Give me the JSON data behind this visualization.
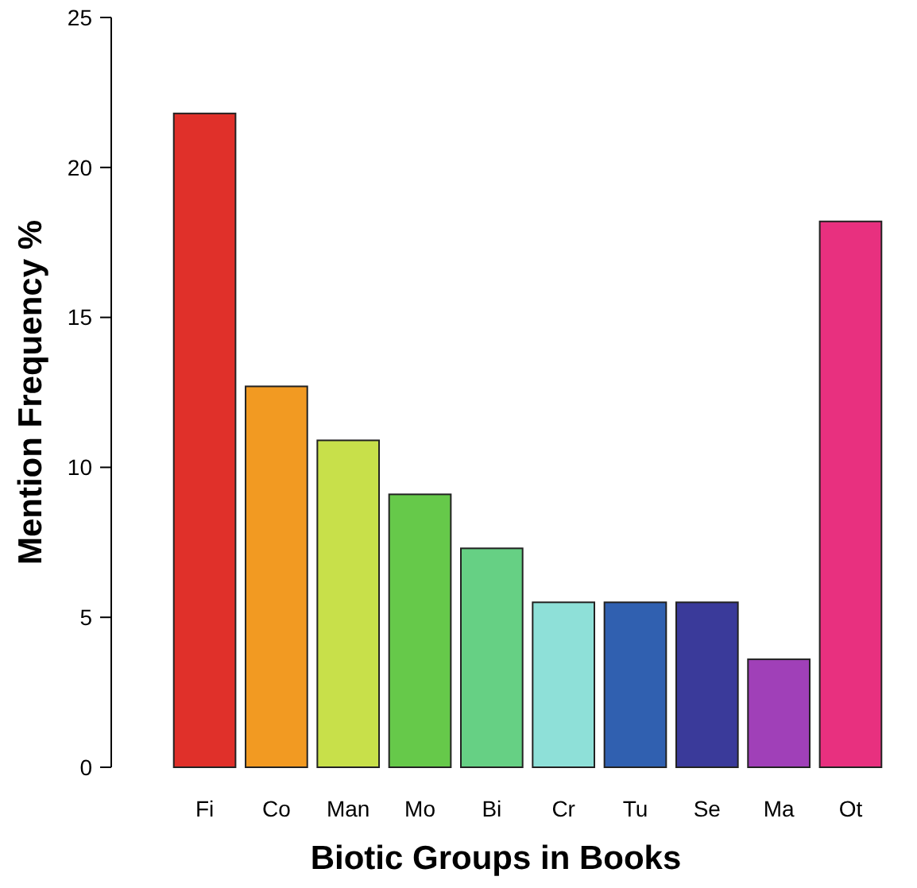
{
  "chart_data": {
    "type": "bar",
    "xlabel": "Biotic Groups in Books",
    "ylabel": "Mention Frequency %",
    "categories": [
      "Fi",
      "Co",
      "Man",
      "Mo",
      "Bi",
      "Cr",
      "Tu",
      "Se",
      "Ma",
      "Ot"
    ],
    "values": [
      21.8,
      12.7,
      10.9,
      9.1,
      7.3,
      5.5,
      5.5,
      5.5,
      3.6,
      18.2
    ],
    "colors": [
      "#e0302a",
      "#f29a22",
      "#c8e04a",
      "#66c94a",
      "#66d084",
      "#8ee0d8",
      "#3060b0",
      "#3a3a9a",
      "#a040b8",
      "#e8307f"
    ],
    "ylim": [
      0,
      25
    ],
    "yticks": [
      0,
      5,
      10,
      15,
      20,
      25
    ],
    "grid": false
  }
}
